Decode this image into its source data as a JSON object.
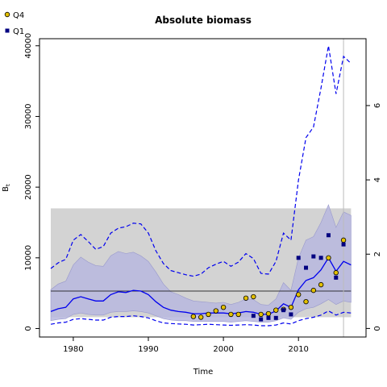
{
  "chart_data": {
    "type": "line",
    "title": "Absolute biomass",
    "xlabel": "Time",
    "ylabel": "B",
    "ylabel_subscript": "t",
    "xlim": [
      1975.5,
      2019
    ],
    "ylim": [
      -1200,
      41000
    ],
    "xticks": [
      1980,
      1990,
      2000,
      2010
    ],
    "yticks": [
      0,
      10000,
      20000,
      30000,
      40000
    ],
    "right_axis": {
      "ylim": [
        -0.23,
        7.8
      ],
      "ticks": [
        0,
        2,
        4,
        6
      ]
    },
    "legend": [
      {
        "label": "Q4",
        "marker": "circle",
        "fill": "#E3C000"
      },
      {
        "label": "Q1",
        "marker": "square",
        "fill": "#000080"
      }
    ],
    "colors": {
      "band": "#B7B7DE",
      "band_outline": "#9999CC",
      "median": "#0000EE",
      "gray_box": "#D3D3D3",
      "q4_fill": "#E3C000",
      "q1_fill": "#000080"
    },
    "gray_box": {
      "x": [
        1977,
        2017
      ],
      "y": [
        1600,
        17000
      ]
    },
    "hline": 5300,
    "vline": 2016,
    "series": [
      {
        "role": "upper-interval",
        "style": "dashed",
        "x": [
          1977,
          1978,
          1979,
          1980,
          1981,
          1982,
          1983,
          1984,
          1985,
          1986,
          1987,
          1988,
          1989,
          1990,
          1991,
          1992,
          1993,
          1994,
          1995,
          1996,
          1997,
          1998,
          1999,
          2000,
          2001,
          2002,
          2003,
          2004,
          2005,
          2006,
          2007,
          2008,
          2009,
          2010,
          2011,
          2012,
          2013,
          2014,
          2015,
          2016,
          2017
        ],
        "values": [
          8500,
          9300,
          9800,
          12500,
          13300,
          12300,
          11200,
          11600,
          13500,
          14200,
          14400,
          14900,
          14800,
          13500,
          11000,
          9200,
          8200,
          7900,
          7600,
          7400,
          7700,
          8600,
          9100,
          9500,
          8800,
          9400,
          10600,
          9900,
          7800,
          7700,
          9500,
          13500,
          12500,
          21000,
          27000,
          28500,
          34000,
          40000,
          33200,
          38500,
          37500
        ]
      },
      {
        "role": "band-upper",
        "x": [
          1977,
          1978,
          1979,
          1980,
          1981,
          1982,
          1983,
          1984,
          1985,
          1986,
          1987,
          1988,
          1989,
          1990,
          1991,
          1992,
          1993,
          1994,
          1995,
          1996,
          1997,
          1998,
          1999,
          2000,
          2001,
          2002,
          2003,
          2004,
          2005,
          2006,
          2007,
          2008,
          2009,
          2010,
          2011,
          2012,
          2013,
          2014,
          2015,
          2016,
          2017
        ],
        "values": [
          5500,
          6300,
          6700,
          9000,
          10100,
          9400,
          8900,
          8800,
          10300,
          10900,
          10600,
          10800,
          10300,
          9500,
          8000,
          6300,
          5200,
          4800,
          4300,
          3900,
          3800,
          3700,
          3600,
          3700,
          3400,
          3700,
          4200,
          4100,
          3400,
          3300,
          4200,
          6500,
          5400,
          10000,
          12500,
          13000,
          15000,
          17500,
          14300,
          16500,
          16000
        ]
      },
      {
        "role": "median",
        "style": "solid",
        "x": [
          1977,
          1978,
          1979,
          1980,
          1981,
          1982,
          1983,
          1984,
          1985,
          1986,
          1987,
          1988,
          1989,
          1990,
          1991,
          1992,
          1993,
          1994,
          1995,
          1996,
          1997,
          1998,
          1999,
          2000,
          2001,
          2002,
          2003,
          2004,
          2005,
          2006,
          2007,
          2008,
          2009,
          2010,
          2011,
          2012,
          2013,
          2014,
          2015,
          2016,
          2017
        ],
        "values": [
          2400,
          2800,
          3000,
          4200,
          4500,
          4200,
          3900,
          3900,
          4800,
          5200,
          5100,
          5400,
          5300,
          4800,
          3800,
          3000,
          2600,
          2400,
          2300,
          2100,
          2100,
          2200,
          2200,
          2200,
          2100,
          2200,
          2400,
          2300,
          2000,
          2000,
          2500,
          3500,
          3000,
          5500,
          6800,
          7200,
          8300,
          10000,
          8100,
          9500,
          9000
        ]
      },
      {
        "role": "band-lower",
        "x": [
          1977,
          1978,
          1979,
          1980,
          1981,
          1982,
          1983,
          1984,
          1985,
          1986,
          1987,
          1988,
          1989,
          1990,
          1991,
          1992,
          1993,
          1994,
          1995,
          1996,
          1997,
          1998,
          1999,
          2000,
          2001,
          2002,
          2003,
          2004,
          2005,
          2006,
          2007,
          2008,
          2009,
          2010,
          2011,
          2012,
          2013,
          2014,
          2015,
          2016,
          2017
        ],
        "values": [
          1100,
          1300,
          1400,
          2000,
          2200,
          2000,
          1900,
          1900,
          2300,
          2400,
          2400,
          2500,
          2400,
          2200,
          1800,
          1400,
          1200,
          1100,
          1100,
          1000,
          1000,
          1000,
          1000,
          1000,
          900,
          1000,
          1100,
          1000,
          900,
          900,
          1100,
          1500,
          1300,
          2300,
          2800,
          3000,
          3500,
          4100,
          3400,
          3900,
          3700
        ]
      },
      {
        "role": "lower-interval",
        "style": "dashed",
        "x": [
          1977,
          1978,
          1979,
          1980,
          1981,
          1982,
          1983,
          1984,
          1985,
          1986,
          1987,
          1988,
          1989,
          1990,
          1991,
          1992,
          1993,
          1994,
          1995,
          1996,
          1997,
          1998,
          1999,
          2000,
          2001,
          2002,
          2003,
          2004,
          2005,
          2006,
          2007,
          2008,
          2009,
          2010,
          2011,
          2012,
          2013,
          2014,
          2015,
          2016,
          2017
        ],
        "values": [
          600,
          800,
          900,
          1300,
          1400,
          1300,
          1200,
          1200,
          1600,
          1700,
          1700,
          1800,
          1700,
          1500,
          1100,
          800,
          700,
          650,
          600,
          500,
          550,
          600,
          550,
          500,
          450,
          500,
          550,
          500,
          400,
          400,
          500,
          800,
          650,
          1100,
          1400,
          1600,
          1900,
          2500,
          1900,
          2300,
          2200
        ]
      }
    ],
    "scatter": [
      {
        "name": "Q4",
        "x": [
          1996,
          1997,
          1998,
          1999,
          2000,
          2001,
          2002,
          2003,
          2004,
          2005,
          2006,
          2007,
          2008,
          2009,
          2010,
          2011,
          2012,
          2013,
          2014,
          2015,
          2016
        ],
        "values": [
          1700,
          1600,
          2000,
          2500,
          3000,
          2000,
          2000,
          4300,
          4500,
          2000,
          2100,
          2600,
          2700,
          3000,
          4800,
          3800,
          5400,
          6200,
          10000,
          7900,
          12500
        ]
      },
      {
        "name": "Q1",
        "x": [
          2004,
          2005,
          2006,
          2007,
          2008,
          2009,
          2010,
          2011,
          2012,
          2013,
          2014,
          2015,
          2016
        ],
        "values": [
          1800,
          1300,
          1500,
          1500,
          2600,
          2000,
          10000,
          8600,
          10200,
          10000,
          13200,
          7200,
          11900
        ]
      }
    ]
  }
}
